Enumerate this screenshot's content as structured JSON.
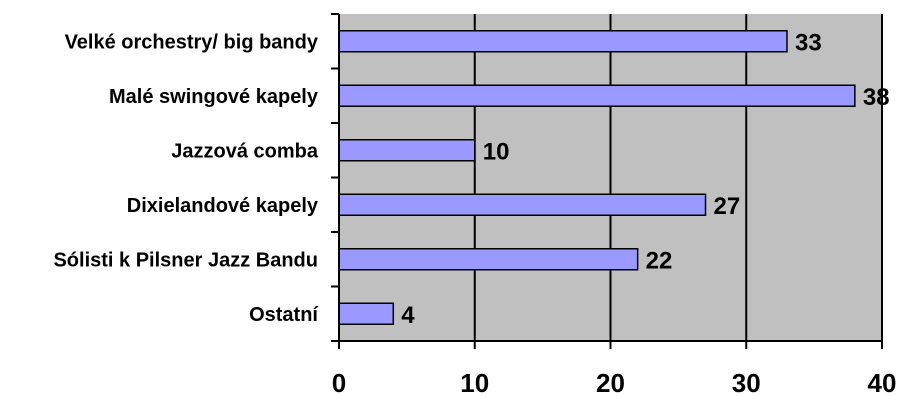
{
  "chart_data": {
    "type": "bar",
    "orientation": "horizontal",
    "categories": [
      "Velké orchestry/ big bandy",
      "Malé swingové kapely",
      "Jazzová comba",
      "Dixielandové kapely",
      "Sólisti k Pilsner Jazz Bandu",
      "Ostatní"
    ],
    "values": [
      33,
      38,
      10,
      27,
      22,
      4
    ],
    "xlim": [
      0,
      40
    ],
    "xticks": [
      0,
      10,
      20,
      30,
      40
    ],
    "grid": true,
    "legend": "none",
    "colors": {
      "plot_background": "#c0c0c0",
      "bar_fill": "#9999ff",
      "bar_stroke": "#000000",
      "gridline": "#000000"
    }
  }
}
